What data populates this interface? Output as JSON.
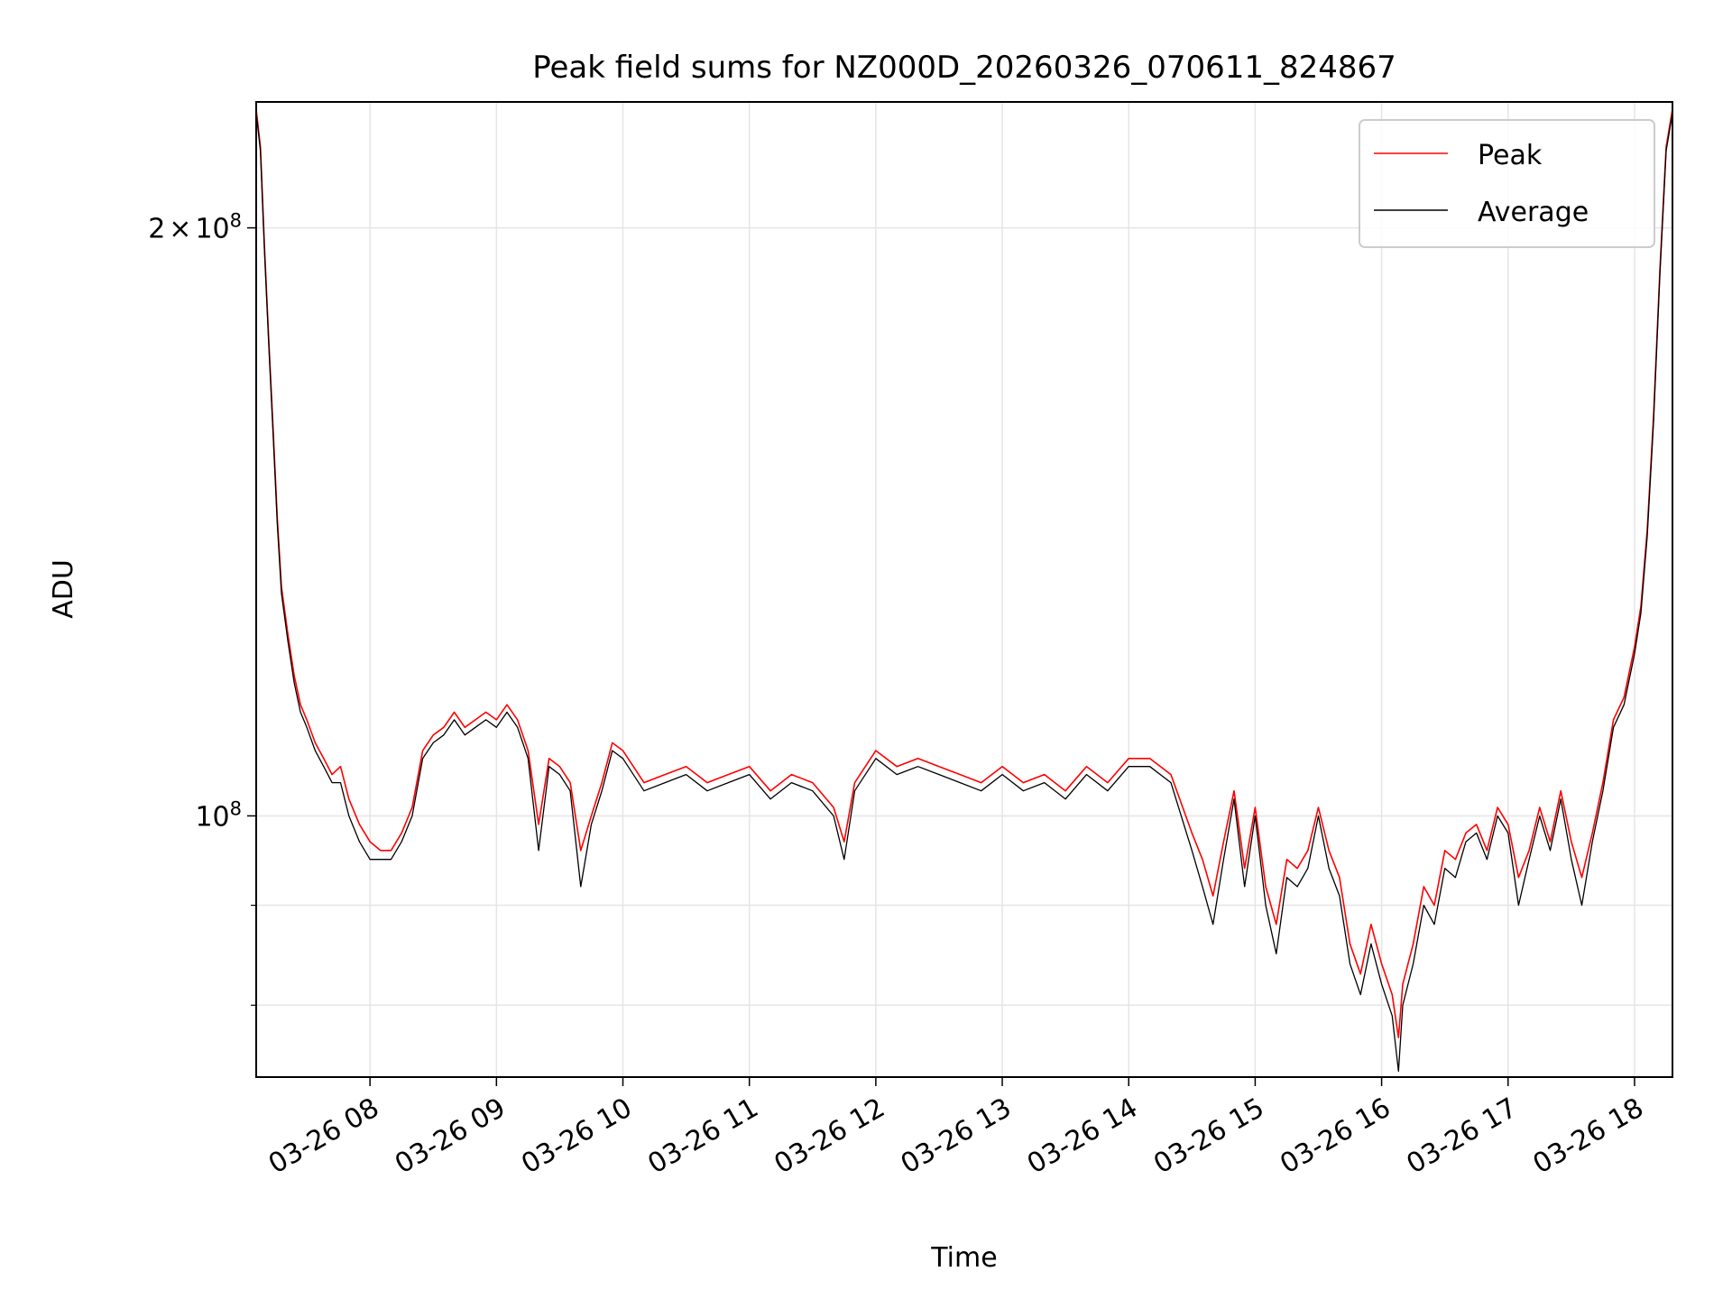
{
  "chart_data": {
    "type": "line",
    "title": "Peak field sums for NZ000D_20260326_070611_824867",
    "xlabel": "Time",
    "ylabel": "ADU",
    "yscale": "log",
    "grid": true,
    "legend_position": "top-right",
    "xlim": [
      "03-26 07:06",
      "03-26 18:18"
    ],
    "ylim": [
      73500000,
      232000000
    ],
    "x_ticks": [
      {
        "value": "03-26 08:00",
        "label": "03-26 08"
      },
      {
        "value": "03-26 09:00",
        "label": "03-26 09"
      },
      {
        "value": "03-26 10:00",
        "label": "03-26 10"
      },
      {
        "value": "03-26 11:00",
        "label": "03-26 11"
      },
      {
        "value": "03-26 12:00",
        "label": "03-26 12"
      },
      {
        "value": "03-26 13:00",
        "label": "03-26 13"
      },
      {
        "value": "03-26 14:00",
        "label": "03-26 14"
      },
      {
        "value": "03-26 15:00",
        "label": "03-26 15"
      },
      {
        "value": "03-26 16:00",
        "label": "03-26 16"
      },
      {
        "value": "03-26 17:00",
        "label": "03-26 17"
      },
      {
        "value": "03-26 18:00",
        "label": "03-26 18"
      }
    ],
    "y_major_ticks": [
      {
        "value": 200000000,
        "mantissa": "2",
        "times": "×",
        "base": "10",
        "exp": "8"
      },
      {
        "value": 100000000,
        "mantissa": "",
        "times": "",
        "base": "10",
        "exp": "8"
      }
    ],
    "y_minor_ticks": [
      80000000,
      90000000,
      300000000
    ],
    "series": [
      {
        "name": "Peak",
        "color": "#ff0000",
        "x": [
          "03-26 07:06",
          "03-26 07:08",
          "03-26 07:10",
          "03-26 07:12",
          "03-26 07:14",
          "03-26 07:16",
          "03-26 07:18",
          "03-26 07:21",
          "03-26 07:24",
          "03-26 07:27",
          "03-26 07:30",
          "03-26 07:34",
          "03-26 07:38",
          "03-26 07:42",
          "03-26 07:46",
          "03-26 07:50",
          "03-26 07:55",
          "03-26 08:00",
          "03-26 08:05",
          "03-26 08:10",
          "03-26 08:15",
          "03-26 08:20",
          "03-26 08:25",
          "03-26 08:30",
          "03-26 08:35",
          "03-26 08:40",
          "03-26 08:45",
          "03-26 08:50",
          "03-26 08:55",
          "03-26 09:00",
          "03-26 09:05",
          "03-26 09:10",
          "03-26 09:15",
          "03-26 09:20",
          "03-26 09:25",
          "03-26 09:30",
          "03-26 09:35",
          "03-26 09:40",
          "03-26 09:45",
          "03-26 09:50",
          "03-26 09:55",
          "03-26 10:00",
          "03-26 10:10",
          "03-26 10:20",
          "03-26 10:30",
          "03-26 10:40",
          "03-26 10:50",
          "03-26 11:00",
          "03-26 11:10",
          "03-26 11:20",
          "03-26 11:30",
          "03-26 11:40",
          "03-26 11:45",
          "03-26 11:50",
          "03-26 12:00",
          "03-26 12:10",
          "03-26 12:20",
          "03-26 12:30",
          "03-26 12:40",
          "03-26 12:50",
          "03-26 13:00",
          "03-26 13:10",
          "03-26 13:20",
          "03-26 13:30",
          "03-26 13:40",
          "03-26 13:50",
          "03-26 14:00",
          "03-26 14:10",
          "03-26 14:20",
          "03-26 14:30",
          "03-26 14:35",
          "03-26 14:40",
          "03-26 14:45",
          "03-26 14:50",
          "03-26 14:55",
          "03-26 15:00",
          "03-26 15:05",
          "03-26 15:10",
          "03-26 15:15",
          "03-26 15:20",
          "03-26 15:25",
          "03-26 15:30",
          "03-26 15:35",
          "03-26 15:40",
          "03-26 15:45",
          "03-26 15:50",
          "03-26 15:55",
          "03-26 16:00",
          "03-26 16:05",
          "03-26 16:08",
          "03-26 16:10",
          "03-26 16:15",
          "03-26 16:20",
          "03-26 16:25",
          "03-26 16:30",
          "03-26 16:35",
          "03-26 16:40",
          "03-26 16:45",
          "03-26 16:50",
          "03-26 16:55",
          "03-26 17:00",
          "03-26 17:05",
          "03-26 17:10",
          "03-26 17:15",
          "03-26 17:20",
          "03-26 17:25",
          "03-26 17:30",
          "03-26 17:35",
          "03-26 17:40",
          "03-26 17:45",
          "03-26 17:50",
          "03-26 17:55",
          "03-26 18:00",
          "03-26 18:03",
          "03-26 18:06",
          "03-26 18:09",
          "03-26 18:12",
          "03-26 18:15",
          "03-26 18:18"
        ],
        "values": [
          230000000,
          220000000,
          195000000,
          175000000,
          158000000,
          142000000,
          131000000,
          124000000,
          118000000,
          114000000,
          112000000,
          109000000,
          107000000,
          105000000,
          106000000,
          102000000,
          99000000,
          97000000,
          96000000,
          96000000,
          98000000,
          101000000,
          108000000,
          110000000,
          111000000,
          113000000,
          111000000,
          112000000,
          113000000,
          112000000,
          114000000,
          112000000,
          108000000,
          99000000,
          107000000,
          106000000,
          104000000,
          96000000,
          100000000,
          104000000,
          109000000,
          108000000,
          104000000,
          105000000,
          106000000,
          104000000,
          105000000,
          106000000,
          103000000,
          105000000,
          104000000,
          101000000,
          97000000,
          104000000,
          108000000,
          106000000,
          107000000,
          106000000,
          105000000,
          104000000,
          106000000,
          104000000,
          105000000,
          103000000,
          106000000,
          104000000,
          107000000,
          107000000,
          105000000,
          98000000,
          95000000,
          91000000,
          97000000,
          103000000,
          94000000,
          101000000,
          92000000,
          88000000,
          95000000,
          94000000,
          96000000,
          101000000,
          96000000,
          93000000,
          86000000,
          83000000,
          88000000,
          84000000,
          81000000,
          77000000,
          82000000,
          86000000,
          92000000,
          90000000,
          96000000,
          95000000,
          98000000,
          99000000,
          96000000,
          101000000,
          99000000,
          93000000,
          96000000,
          101000000,
          97000000,
          103000000,
          97000000,
          93000000,
          98000000,
          104000000,
          112000000,
          115000000,
          122000000,
          128000000,
          140000000,
          160000000,
          190000000,
          220000000,
          230000000
        ]
      },
      {
        "name": "Average",
        "color": "#000000",
        "x": [
          "03-26 07:06",
          "03-26 07:08",
          "03-26 07:10",
          "03-26 07:12",
          "03-26 07:14",
          "03-26 07:16",
          "03-26 07:18",
          "03-26 07:21",
          "03-26 07:24",
          "03-26 07:27",
          "03-26 07:30",
          "03-26 07:34",
          "03-26 07:38",
          "03-26 07:42",
          "03-26 07:46",
          "03-26 07:50",
          "03-26 07:55",
          "03-26 08:00",
          "03-26 08:05",
          "03-26 08:10",
          "03-26 08:15",
          "03-26 08:20",
          "03-26 08:25",
          "03-26 08:30",
          "03-26 08:35",
          "03-26 08:40",
          "03-26 08:45",
          "03-26 08:50",
          "03-26 08:55",
          "03-26 09:00",
          "03-26 09:05",
          "03-26 09:10",
          "03-26 09:15",
          "03-26 09:20",
          "03-26 09:25",
          "03-26 09:30",
          "03-26 09:35",
          "03-26 09:40",
          "03-26 09:45",
          "03-26 09:50",
          "03-26 09:55",
          "03-26 10:00",
          "03-26 10:10",
          "03-26 10:20",
          "03-26 10:30",
          "03-26 10:40",
          "03-26 10:50",
          "03-26 11:00",
          "03-26 11:10",
          "03-26 11:20",
          "03-26 11:30",
          "03-26 11:40",
          "03-26 11:45",
          "03-26 11:50",
          "03-26 12:00",
          "03-26 12:10",
          "03-26 12:20",
          "03-26 12:30",
          "03-26 12:40",
          "03-26 12:50",
          "03-26 13:00",
          "03-26 13:10",
          "03-26 13:20",
          "03-26 13:30",
          "03-26 13:40",
          "03-26 13:50",
          "03-26 14:00",
          "03-26 14:10",
          "03-26 14:20",
          "03-26 14:30",
          "03-26 14:35",
          "03-26 14:40",
          "03-26 14:45",
          "03-26 14:50",
          "03-26 14:55",
          "03-26 15:00",
          "03-26 15:05",
          "03-26 15:10",
          "03-26 15:15",
          "03-26 15:20",
          "03-26 15:25",
          "03-26 15:30",
          "03-26 15:35",
          "03-26 15:40",
          "03-26 15:45",
          "03-26 15:50",
          "03-26 15:55",
          "03-26 16:00",
          "03-26 16:05",
          "03-26 16:08",
          "03-26 16:10",
          "03-26 16:15",
          "03-26 16:20",
          "03-26 16:25",
          "03-26 16:30",
          "03-26 16:35",
          "03-26 16:40",
          "03-26 16:45",
          "03-26 16:50",
          "03-26 16:55",
          "03-26 17:00",
          "03-26 17:05",
          "03-26 17:10",
          "03-26 17:15",
          "03-26 17:20",
          "03-26 17:25",
          "03-26 17:30",
          "03-26 17:35",
          "03-26 17:40",
          "03-26 17:45",
          "03-26 17:50",
          "03-26 17:55",
          "03-26 18:00",
          "03-26 18:03",
          "03-26 18:06",
          "03-26 18:09",
          "03-26 18:12",
          "03-26 18:15",
          "03-26 18:18"
        ],
        "values": [
          229000000,
          219000000,
          194000000,
          174000000,
          157000000,
          141000000,
          130000000,
          123000000,
          117000000,
          113000000,
          111000000,
          108000000,
          106000000,
          104000000,
          104000000,
          100000000,
          97000000,
          95000000,
          95000000,
          95000000,
          97000000,
          100000000,
          107000000,
          109000000,
          110000000,
          112000000,
          110000000,
          111000000,
          112000000,
          111000000,
          113000000,
          111000000,
          107000000,
          96000000,
          106000000,
          105000000,
          103000000,
          92000000,
          99000000,
          103000000,
          108000000,
          107000000,
          103000000,
          104000000,
          105000000,
          103000000,
          104000000,
          105000000,
          102000000,
          104000000,
          103000000,
          100000000,
          95000000,
          103000000,
          107000000,
          105000000,
          106000000,
          105000000,
          104000000,
          103000000,
          105000000,
          103000000,
          104000000,
          102000000,
          105000000,
          103000000,
          106000000,
          106000000,
          104000000,
          96000000,
          92000000,
          88000000,
          95000000,
          102000000,
          92000000,
          100000000,
          90000000,
          85000000,
          93000000,
          92000000,
          94000000,
          100000000,
          94000000,
          91000000,
          84000000,
          81000000,
          86000000,
          82000000,
          79000000,
          74000000,
          80000000,
          84000000,
          90000000,
          88000000,
          94000000,
          93000000,
          97000000,
          98000000,
          95000000,
          100000000,
          98000000,
          90000000,
          95000000,
          100000000,
          96000000,
          102000000,
          95000000,
          90000000,
          97000000,
          103000000,
          111000000,
          114000000,
          121000000,
          127000000,
          139000000,
          159000000,
          189000000,
          219000000,
          229000000
        ]
      }
    ]
  }
}
